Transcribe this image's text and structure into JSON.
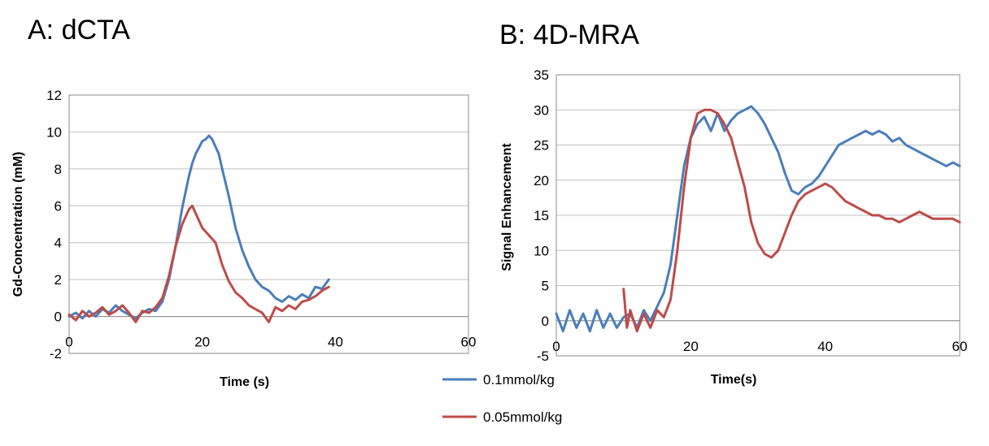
{
  "chart_data": [
    {
      "id": "A",
      "type": "line",
      "title": "A: dCTA",
      "xlabel": "Time (s)",
      "ylabel": "Gd-Concentration  (mM)",
      "xlim": [
        0,
        60
      ],
      "ylim": [
        -2,
        12
      ],
      "xticks": [
        0,
        20,
        40,
        60
      ],
      "yticks": [
        -2,
        0,
        2,
        4,
        6,
        8,
        10,
        12
      ],
      "grid": true,
      "series": [
        {
          "name": "0.1mmol/kg",
          "color": "#4a7ebb",
          "x": [
            0,
            1,
            2,
            3,
            4,
            5,
            6,
            7,
            8,
            9,
            10,
            11,
            12,
            13,
            14,
            15,
            16,
            17,
            18,
            18.5,
            19,
            20,
            20.5,
            21,
            21.5,
            22,
            22.5,
            23,
            24,
            25,
            26,
            27,
            28,
            29,
            30,
            31,
            32,
            33,
            34,
            35,
            36,
            37,
            38,
            39
          ],
          "y": [
            0.0,
            0.2,
            -0.1,
            0.3,
            0.0,
            0.4,
            0.2,
            0.6,
            0.3,
            0.1,
            -0.1,
            0.2,
            0.4,
            0.3,
            0.8,
            2.0,
            3.8,
            5.9,
            7.6,
            8.3,
            8.8,
            9.5,
            9.6,
            9.8,
            9.6,
            9.2,
            8.8,
            8.0,
            6.5,
            4.8,
            3.6,
            2.7,
            2.0,
            1.6,
            1.4,
            1.0,
            0.8,
            1.1,
            0.9,
            1.2,
            1.0,
            1.6,
            1.5,
            2.0
          ]
        },
        {
          "name": "0.05mmol/kg",
          "color": "#be4b48",
          "x": [
            0,
            1,
            2,
            3,
            4,
            5,
            6,
            7,
            8,
            9,
            10,
            11,
            12,
            13,
            14,
            15,
            16,
            17,
            18,
            18.5,
            19,
            20,
            21,
            22,
            23,
            24,
            25,
            26,
            27,
            28,
            29,
            30,
            31,
            32,
            33,
            34,
            35,
            36,
            37,
            38,
            39
          ],
          "y": [
            0.1,
            -0.2,
            0.3,
            0.0,
            0.2,
            0.5,
            0.1,
            0.3,
            0.6,
            0.2,
            -0.3,
            0.3,
            0.2,
            0.5,
            1.0,
            2.2,
            3.8,
            5.0,
            5.8,
            6.0,
            5.6,
            4.8,
            4.4,
            4.0,
            2.8,
            1.9,
            1.3,
            1.0,
            0.6,
            0.4,
            0.2,
            -0.3,
            0.5,
            0.3,
            0.6,
            0.4,
            0.8,
            0.9,
            1.1,
            1.4,
            1.6
          ]
        }
      ]
    },
    {
      "id": "B",
      "type": "line",
      "title": "B: 4D-MRA",
      "xlabel": "Time(s)",
      "ylabel": "Signal Enhancement",
      "xlim": [
        0,
        60
      ],
      "ylim": [
        -5,
        35
      ],
      "xticks": [
        0,
        20,
        40,
        60
      ],
      "yticks": [
        -5,
        0,
        5,
        10,
        15,
        20,
        25,
        30,
        35
      ],
      "grid": true,
      "series": [
        {
          "name": "0.1mmol/kg",
          "color": "#4a7ebb",
          "x": [
            0,
            1,
            2,
            3,
            4,
            5,
            6,
            7,
            8,
            9,
            10,
            11,
            12,
            13,
            14,
            15,
            16,
            17,
            18,
            19,
            20,
            21,
            22,
            23,
            24,
            25,
            26,
            27,
            28,
            29,
            30,
            31,
            32,
            33,
            34,
            35,
            36,
            37,
            38,
            39,
            40,
            41,
            42,
            43,
            44,
            45,
            46,
            47,
            48,
            49,
            50,
            51,
            52,
            53,
            54,
            55,
            56,
            57,
            58,
            59,
            60
          ],
          "y": [
            1.0,
            -1.5,
            1.5,
            -1.0,
            1.0,
            -1.5,
            1.5,
            -1.0,
            1.0,
            -1.0,
            0.5,
            1.0,
            -1.0,
            1.5,
            0.0,
            2.0,
            4.0,
            8.0,
            15.0,
            22.0,
            26.0,
            28.0,
            29.0,
            27.0,
            29.5,
            27.0,
            28.5,
            29.5,
            30.0,
            30.5,
            29.5,
            28.0,
            26.0,
            24.0,
            21.0,
            18.5,
            18.0,
            19.0,
            19.5,
            20.5,
            22.0,
            23.5,
            25.0,
            25.5,
            26.0,
            26.5,
            27.0,
            26.5,
            27.0,
            26.5,
            25.5,
            26.0,
            25.0,
            24.5,
            24.0,
            23.5,
            23.0,
            22.5,
            22.0,
            22.5,
            22.0
          ]
        },
        {
          "name": "0.05mmol/kg",
          "color": "#be4b48",
          "x": [
            10,
            10.5,
            11,
            12,
            13,
            14,
            15,
            16,
            17,
            18,
            19,
            20,
            21,
            22,
            23,
            24,
            25,
            26,
            27,
            28,
            29,
            30,
            31,
            32,
            33,
            34,
            35,
            36,
            37,
            38,
            39,
            40,
            41,
            42,
            43,
            44,
            45,
            46,
            47,
            48,
            49,
            50,
            51,
            52,
            53,
            54,
            55,
            56,
            57,
            58,
            59,
            60
          ],
          "y": [
            4.5,
            -1.0,
            1.5,
            -1.5,
            1.0,
            -1.0,
            1.5,
            0.5,
            3.0,
            10.0,
            19.0,
            26.0,
            29.5,
            30.0,
            30.0,
            29.5,
            28.0,
            26.0,
            22.5,
            19.0,
            14.0,
            11.0,
            9.5,
            9.0,
            10.0,
            12.5,
            15.0,
            17.0,
            18.0,
            18.5,
            19.0,
            19.5,
            19.0,
            18.0,
            17.0,
            16.5,
            16.0,
            15.5,
            15.0,
            15.0,
            14.5,
            14.5,
            14.0,
            14.5,
            15.0,
            15.5,
            15.0,
            14.5,
            14.5,
            14.5,
            14.5,
            14.0
          ]
        }
      ]
    }
  ],
  "legend": [
    {
      "label": "0.1mmol/kg",
      "color": "#4a7ebb"
    },
    {
      "label": "0.05mmol/kg",
      "color": "#be4b48"
    }
  ]
}
